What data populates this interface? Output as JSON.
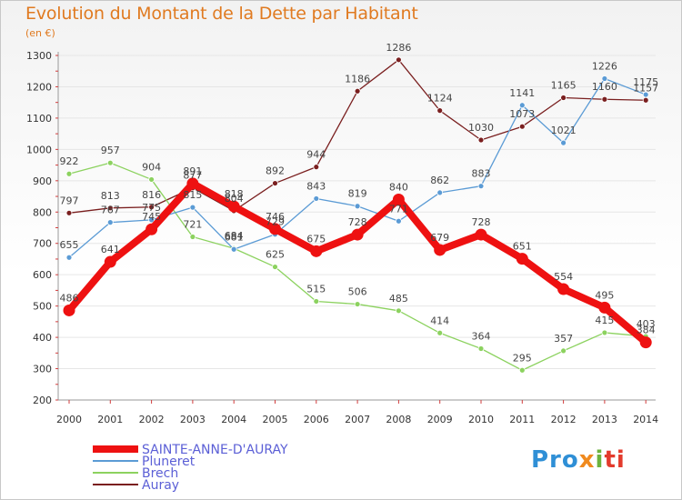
{
  "title": "Evolution du Montant de la Dette par Habitant",
  "unit_label": "(en €)",
  "logo": {
    "part1": "Pro",
    "part2": "x",
    "part3": "i",
    "part4": "ti"
  },
  "colors": {
    "title": "#e07a20",
    "axis_text": "#333333",
    "gridline": "#e6e6e6",
    "axis_tick_red": "#d23c3c"
  },
  "chart_data": {
    "type": "line",
    "categories": [
      "2000",
      "2001",
      "2002",
      "2003",
      "2004",
      "2005",
      "2006",
      "2007",
      "2008",
      "2009",
      "2010",
      "2011",
      "2012",
      "2013",
      "2014"
    ],
    "ylim": [
      200,
      1300
    ],
    "yticks": [
      200,
      300,
      400,
      500,
      600,
      700,
      800,
      900,
      1000,
      1100,
      1200,
      1300
    ],
    "grid": true,
    "legend_position": "bottom-left",
    "series": [
      {
        "name": "Auray",
        "color": "#7a1f1f",
        "width": 1.3,
        "values": [
          797,
          813,
          816,
          877,
          804,
          892,
          944,
          1186,
          1286,
          1124,
          1030,
          1073,
          1165,
          1160,
          1157
        ],
        "labels": [
          "797",
          "813",
          "816",
          "877",
          "804",
          "892",
          "944",
          "1186",
          "1286",
          "1124",
          "1030",
          "1073",
          "1165",
          "1160",
          "1157"
        ]
      },
      {
        "name": "Brech",
        "color": "#8cd25f",
        "width": 1.3,
        "values": [
          922,
          957,
          904,
          721,
          684,
          625,
          515,
          506,
          485,
          414,
          364,
          295,
          357,
          415,
          403
        ],
        "labels": [
          "922",
          "957",
          "904",
          "721",
          "684",
          "625",
          "515",
          "506",
          "485",
          "414",
          "364",
          "295",
          "357",
          "415",
          "403"
        ]
      },
      {
        "name": "Pluneret",
        "color": "#5b9bd5",
        "width": 1.3,
        "values": [
          655,
          767,
          775,
          815,
          681,
          729,
          843,
          819,
          771,
          862,
          883,
          1141,
          1021,
          1226,
          1175
        ],
        "labels": [
          "655",
          "767",
          "775",
          "815",
          "681",
          "729",
          "843",
          "819",
          "771",
          "862",
          "883",
          "1141",
          "1021",
          "1226",
          "1175"
        ]
      },
      {
        "name": "SAINTE-ANNE-D'AURAY",
        "color": "#ee1111",
        "width": 8,
        "values": [
          486,
          641,
          745,
          891,
          818,
          746,
          675,
          728,
          840,
          679,
          728,
          651,
          554,
          495,
          384
        ],
        "labels": [
          "486",
          "641",
          "745",
          "891",
          "818",
          "746",
          "675",
          "728",
          "840",
          "679",
          "728",
          "651",
          "554",
          "495",
          "384"
        ]
      }
    ],
    "legend": [
      {
        "name": "SAINTE-ANNE-D'AURAY",
        "color": "#ee1111",
        "width": 8
      },
      {
        "name": "Pluneret",
        "color": "#5b9bd5",
        "width": 2
      },
      {
        "name": "Brech",
        "color": "#8cd25f",
        "width": 2
      },
      {
        "name": "Auray",
        "color": "#7a1f1f",
        "width": 2
      }
    ]
  }
}
